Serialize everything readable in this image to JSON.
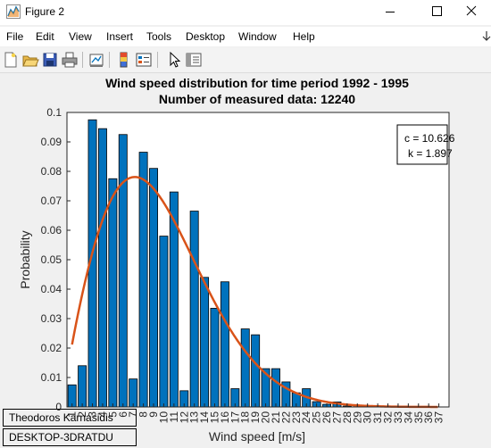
{
  "window": {
    "title": "Figure 2"
  },
  "menu": {
    "items": [
      "File",
      "Edit",
      "View",
      "Insert",
      "Tools",
      "Desktop",
      "Window",
      "Help"
    ]
  },
  "toolbar": {
    "buttons": [
      "new-figure-icon",
      "open-file-icon",
      "save-icon",
      "print-icon",
      "link-plot-icon",
      "colorbar-icon",
      "legend-icon",
      "edit-plot-icon",
      "property-inspector-icon"
    ]
  },
  "colors": {
    "bars": "#0072BD",
    "curve": "#D95319",
    "bar_edge": "#000000"
  },
  "chart_data": {
    "type": "bar",
    "title": "Wind speed distribution for time period 1992 - 1995",
    "subtitle": "Number of measured data: 12240",
    "xlabel": "Wind speed [m/s]",
    "ylabel": "Probability",
    "ylim": [
      0,
      0.1
    ],
    "yticks": [
      "0",
      "0.01",
      "0.02",
      "0.03",
      "0.04",
      "0.05",
      "0.06",
      "0.07",
      "0.08",
      "0.09",
      "0.1"
    ],
    "categories": [
      "1",
      "2",
      "3",
      "4",
      "5",
      "6",
      "7",
      "8",
      "9",
      "10",
      "11",
      "12",
      "13",
      "14",
      "15",
      "16",
      "17",
      "18",
      "19",
      "20",
      "21",
      "22",
      "23",
      "24",
      "25",
      "26",
      "27",
      "28",
      "29",
      "30",
      "31",
      "32",
      "33",
      "34",
      "35",
      "36",
      "37"
    ],
    "values": [
      0.0075,
      0.014,
      0.0975,
      0.0945,
      0.0775,
      0.0925,
      0.0095,
      0.0865,
      0.081,
      0.058,
      0.073,
      0.0055,
      0.0665,
      0.044,
      0.0335,
      0.0425,
      0.0062,
      0.0265,
      0.0245,
      0.013,
      0.013,
      0.0085,
      0.0048,
      0.0062,
      0.0018,
      0.0009,
      0.0017,
      0.0003,
      0.0001,
      0,
      0,
      0,
      0,
      0,
      0,
      0,
      0
    ],
    "series": [
      {
        "type": "bar",
        "values_ref": "values"
      },
      {
        "type": "line",
        "distribution": "weibull",
        "c": 10.626,
        "k": 1.897
      }
    ],
    "grid": false,
    "annotation": {
      "c_label": "c = 10.626",
      "k_label": "k = 1.897",
      "position": "top-right"
    }
  },
  "legend_boxes": {
    "author": "Theodoros Karnasidis",
    "machine": "DESKTOP-3DRATDU"
  }
}
